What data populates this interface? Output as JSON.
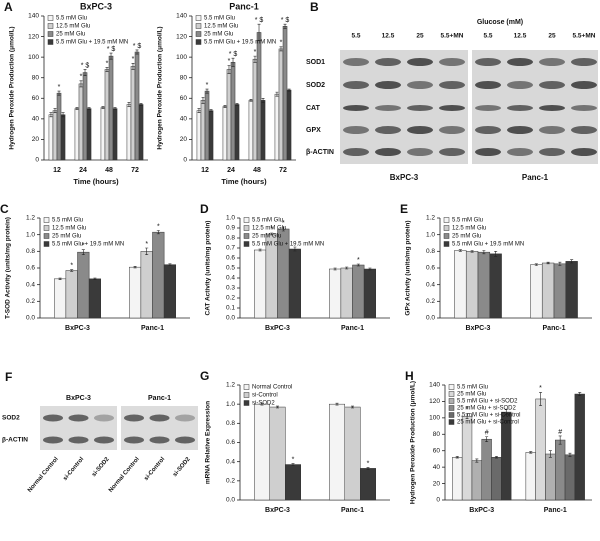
{
  "chart_data": [
    {
      "type": "bar",
      "panel": "A",
      "title": "BxPC-3",
      "ylabel": "Hydrogen Peroxide Production (μmol/L)",
      "xlabel": "Time (hours)",
      "categories": [
        "12",
        "24",
        "48",
        "72"
      ],
      "ylim": [
        0,
        140
      ],
      "yticks": [
        0,
        20,
        40,
        60,
        80,
        100,
        120,
        140
      ],
      "series": [
        {
          "name": "5.5 mM Glu",
          "color": "#f4f4f4",
          "values": [
            44,
            50,
            51,
            54
          ],
          "errors": [
            2,
            1,
            1,
            2
          ]
        },
        {
          "name": "12.5 mM Glu",
          "color": "#cfcfcf",
          "values": [
            48,
            74,
            88,
            91
          ],
          "errors": [
            2,
            3,
            2,
            3
          ],
          "marks": [
            null,
            "*",
            "*",
            "*"
          ]
        },
        {
          "name": "25 mM Glu",
          "color": "#8a8a8a",
          "values": [
            65,
            85,
            101,
            105
          ],
          "errors": [
            2,
            3,
            3,
            2
          ],
          "marks": [
            "*",
            "* $",
            "* $",
            "* $"
          ]
        },
        {
          "name": "5.5 mM Glu + 19.5 mM MN",
          "color": "#3a3a3a",
          "values": [
            44,
            50,
            50,
            54
          ],
          "errors": [
            2,
            1,
            1,
            1
          ]
        }
      ]
    },
    {
      "type": "bar",
      "title": "Panc-1",
      "ylabel": "Hydrogen Peroxide Production (μmol/L)",
      "xlabel": "Time (hours)",
      "categories": [
        "12",
        "24",
        "48",
        "72"
      ],
      "ylim": [
        0,
        140
      ],
      "yticks": [
        0,
        20,
        40,
        60,
        80,
        100,
        120,
        140
      ],
      "series": [
        {
          "name": "5.5 mM Glu",
          "color": "#f4f4f4",
          "values": [
            48,
            52,
            58,
            64
          ],
          "errors": [
            2,
            1,
            1,
            2
          ]
        },
        {
          "name": "12.5 mM Glu",
          "color": "#cfcfcf",
          "values": [
            58,
            88,
            98,
            108
          ],
          "errors": [
            3,
            4,
            3,
            2
          ],
          "marks": [
            null,
            "*",
            "*",
            "*"
          ]
        },
        {
          "name": "25 mM Glu",
          "color": "#8a8a8a",
          "values": [
            67,
            95,
            124,
            130
          ],
          "errors": [
            2,
            4,
            8,
            2
          ],
          "marks": [
            "*",
            "* $",
            "* $",
            "* $"
          ]
        },
        {
          "name": "5.5 mM Glu + 19.5 mM MN",
          "color": "#3a3a3a",
          "values": [
            48,
            54,
            58,
            68
          ],
          "errors": [
            1,
            1,
            2,
            1
          ]
        }
      ]
    },
    {
      "type": "bar",
      "panel": "C",
      "ylabel": "T-SOD Activity (units/mg protein)",
      "categories": [
        "BxPC-3",
        "Panc-1"
      ],
      "ylim": [
        0,
        1.2
      ],
      "yticks": [
        {
          "value": 0,
          "label": "0.0"
        },
        0.2,
        0.4,
        0.6,
        0.8,
        {
          "value": 1,
          "label": "1.0"
        },
        1.2
      ],
      "series": [
        {
          "name": "5.5 mM Glu",
          "color": "#f4f4f4",
          "values": [
            0.47,
            0.61
          ],
          "errors": [
            0.01,
            0.01
          ]
        },
        {
          "name": "12.5 mM Glu",
          "color": "#cfcfcf",
          "values": [
            0.57,
            0.8
          ],
          "errors": [
            0.01,
            0.04
          ],
          "marks": [
            "*",
            "*"
          ]
        },
        {
          "name": "25 mM Glu",
          "color": "#8a8a8a",
          "values": [
            0.79,
            1.03
          ],
          "errors": [
            0.03,
            0.02
          ],
          "marks": [
            "*",
            "*"
          ]
        },
        {
          "name": "5.5 mM Glu + 19.5 mM MN",
          "color": "#3a3a3a",
          "values": [
            0.47,
            0.64
          ],
          "errors": [
            0.01,
            0.01
          ]
        }
      ]
    },
    {
      "type": "bar",
      "panel": "D",
      "ylabel": "CAT Activity (units/mg protein)",
      "categories": [
        "BxPC-3",
        "Panc-1"
      ],
      "ylim": [
        0,
        1
      ],
      "yticks": [
        {
          "value": 0,
          "label": "0.0"
        },
        0.1,
        0.2,
        0.3,
        0.4,
        0.5,
        0.6,
        0.7,
        0.8,
        0.9,
        {
          "value": 1,
          "label": "1.0"
        }
      ],
      "series": [
        {
          "name": "5.5 mM Glu",
          "color": "#f4f4f4",
          "values": [
            0.68,
            0.49
          ],
          "errors": [
            0.01,
            0.01
          ]
        },
        {
          "name": "12.5 mM Glu",
          "color": "#cfcfcf",
          "values": [
            0.84,
            0.5
          ],
          "errors": [
            0.01,
            0.01
          ],
          "marks": [
            "*",
            null
          ]
        },
        {
          "name": "25 mM Glu",
          "color": "#8a8a8a",
          "values": [
            0.89,
            0.53
          ],
          "errors": [
            0.02,
            0.01
          ],
          "marks": [
            "*",
            "*"
          ]
        },
        {
          "name": "5.5 mM Glu + 19.5 mM MN",
          "color": "#3a3a3a",
          "values": [
            0.69,
            0.49
          ],
          "errors": [
            0.02,
            0.01
          ]
        }
      ]
    },
    {
      "type": "bar",
      "panel": "E",
      "ylabel": "GPx Activity (units/mg protein)",
      "categories": [
        "BxPC-3",
        "Panc-1"
      ],
      "ylim": [
        0,
        1.2
      ],
      "yticks": [
        {
          "value": 0,
          "label": "0.0"
        },
        0.2,
        0.4,
        0.6,
        0.8,
        {
          "value": 1,
          "label": "1.0"
        },
        1.2
      ],
      "series": [
        {
          "name": "5.5 mM Glu",
          "color": "#f4f4f4",
          "values": [
            0.81,
            0.64
          ],
          "errors": [
            0.01,
            0.01
          ]
        },
        {
          "name": "12.5 mM Glu",
          "color": "#cfcfcf",
          "values": [
            0.8,
            0.66
          ],
          "errors": [
            0.01,
            0.01
          ]
        },
        {
          "name": "25 mM Glu",
          "color": "#8a8a8a",
          "values": [
            0.79,
            0.65
          ],
          "errors": [
            0.02,
            0.02
          ]
        },
        {
          "name": "5.5 mM Glu + 19.5 mM MN",
          "color": "#3a3a3a",
          "values": [
            0.77,
            0.68
          ],
          "errors": [
            0.03,
            0.02
          ]
        }
      ]
    },
    {
      "type": "bar",
      "panel": "G",
      "ylabel": "mRNA Relative Expression",
      "categories": [
        "BxPC-3",
        "Panc-1"
      ],
      "ylim": [
        0,
        1.2
      ],
      "yticks": [
        {
          "value": 0,
          "label": "0.0"
        },
        0.2,
        0.4,
        0.6,
        0.8,
        {
          "value": 1,
          "label": "1.0"
        },
        1.2
      ],
      "series": [
        {
          "name": "Normal Control",
          "color": "#f4f4f4",
          "values": [
            1,
            1
          ],
          "errors": [
            0.01,
            0.01
          ]
        },
        {
          "name": "si-Control",
          "color": "#cfcfcf",
          "values": [
            0.97,
            0.97
          ],
          "errors": [
            0.01,
            0.01
          ]
        },
        {
          "name": "si-SOD2",
          "color": "#3a3a3a",
          "values": [
            0.37,
            0.33
          ],
          "errors": [
            0.01,
            0.01
          ],
          "marks": [
            "*",
            "*"
          ]
        }
      ]
    },
    {
      "type": "bar",
      "panel": "H",
      "ylabel": "Hydrogen Peroxide Production (μmol/L)",
      "categories": [
        "BxPC-3",
        "Panc-1"
      ],
      "ylim": [
        0,
        140
      ],
      "yticks": [
        0,
        20,
        40,
        60,
        80,
        100,
        120,
        140
      ],
      "series": [
        {
          "name": "5.5 mM Glu",
          "color": "#f4f4f4",
          "values": [
            52,
            58
          ],
          "errors": [
            1,
            1
          ]
        },
        {
          "name": "25 mM Glu",
          "color": "#d9d9d9",
          "values": [
            102,
            123
          ],
          "errors": [
            3,
            8
          ],
          "marks": [
            "*",
            "*"
          ]
        },
        {
          "name": "5.5 mM Glu + si-SOD2",
          "color": "#b0b0b0",
          "values": [
            48,
            56
          ],
          "errors": [
            2,
            4
          ]
        },
        {
          "name": "25 mM Glu + si-SOD2",
          "color": "#8a8a8a",
          "values": [
            74,
            73
          ],
          "errors": [
            3,
            5
          ],
          "marks": [
            "#",
            "#"
          ]
        },
        {
          "name": "5.5 mM Glu + si-Control",
          "color": "#6a6a6a",
          "values": [
            52,
            55
          ],
          "errors": [
            1,
            2
          ]
        },
        {
          "name": "25 mM Glu + si-Control",
          "color": "#3a3a3a",
          "values": [
            107,
            129
          ],
          "errors": [
            3,
            2
          ]
        }
      ]
    }
  ],
  "blots": [
    {
      "panel": "B",
      "header": "Glucose (mM)",
      "lanes": [
        "5.5",
        "12.5",
        "25",
        "5.5+MN"
      ],
      "rows": [
        "SOD1",
        "SOD2",
        "CAT",
        "GPX",
        "β-ACTIN"
      ],
      "groups": [
        "BxPC-3",
        "Panc-1"
      ]
    },
    {
      "panel": "F",
      "lanes": [
        "Normal Control",
        "si-Control",
        "si-SOD2"
      ],
      "rows": [
        "SOD2",
        "β-ACTIN"
      ],
      "groups": [
        "BxPC-3",
        "Panc-1"
      ]
    }
  ]
}
